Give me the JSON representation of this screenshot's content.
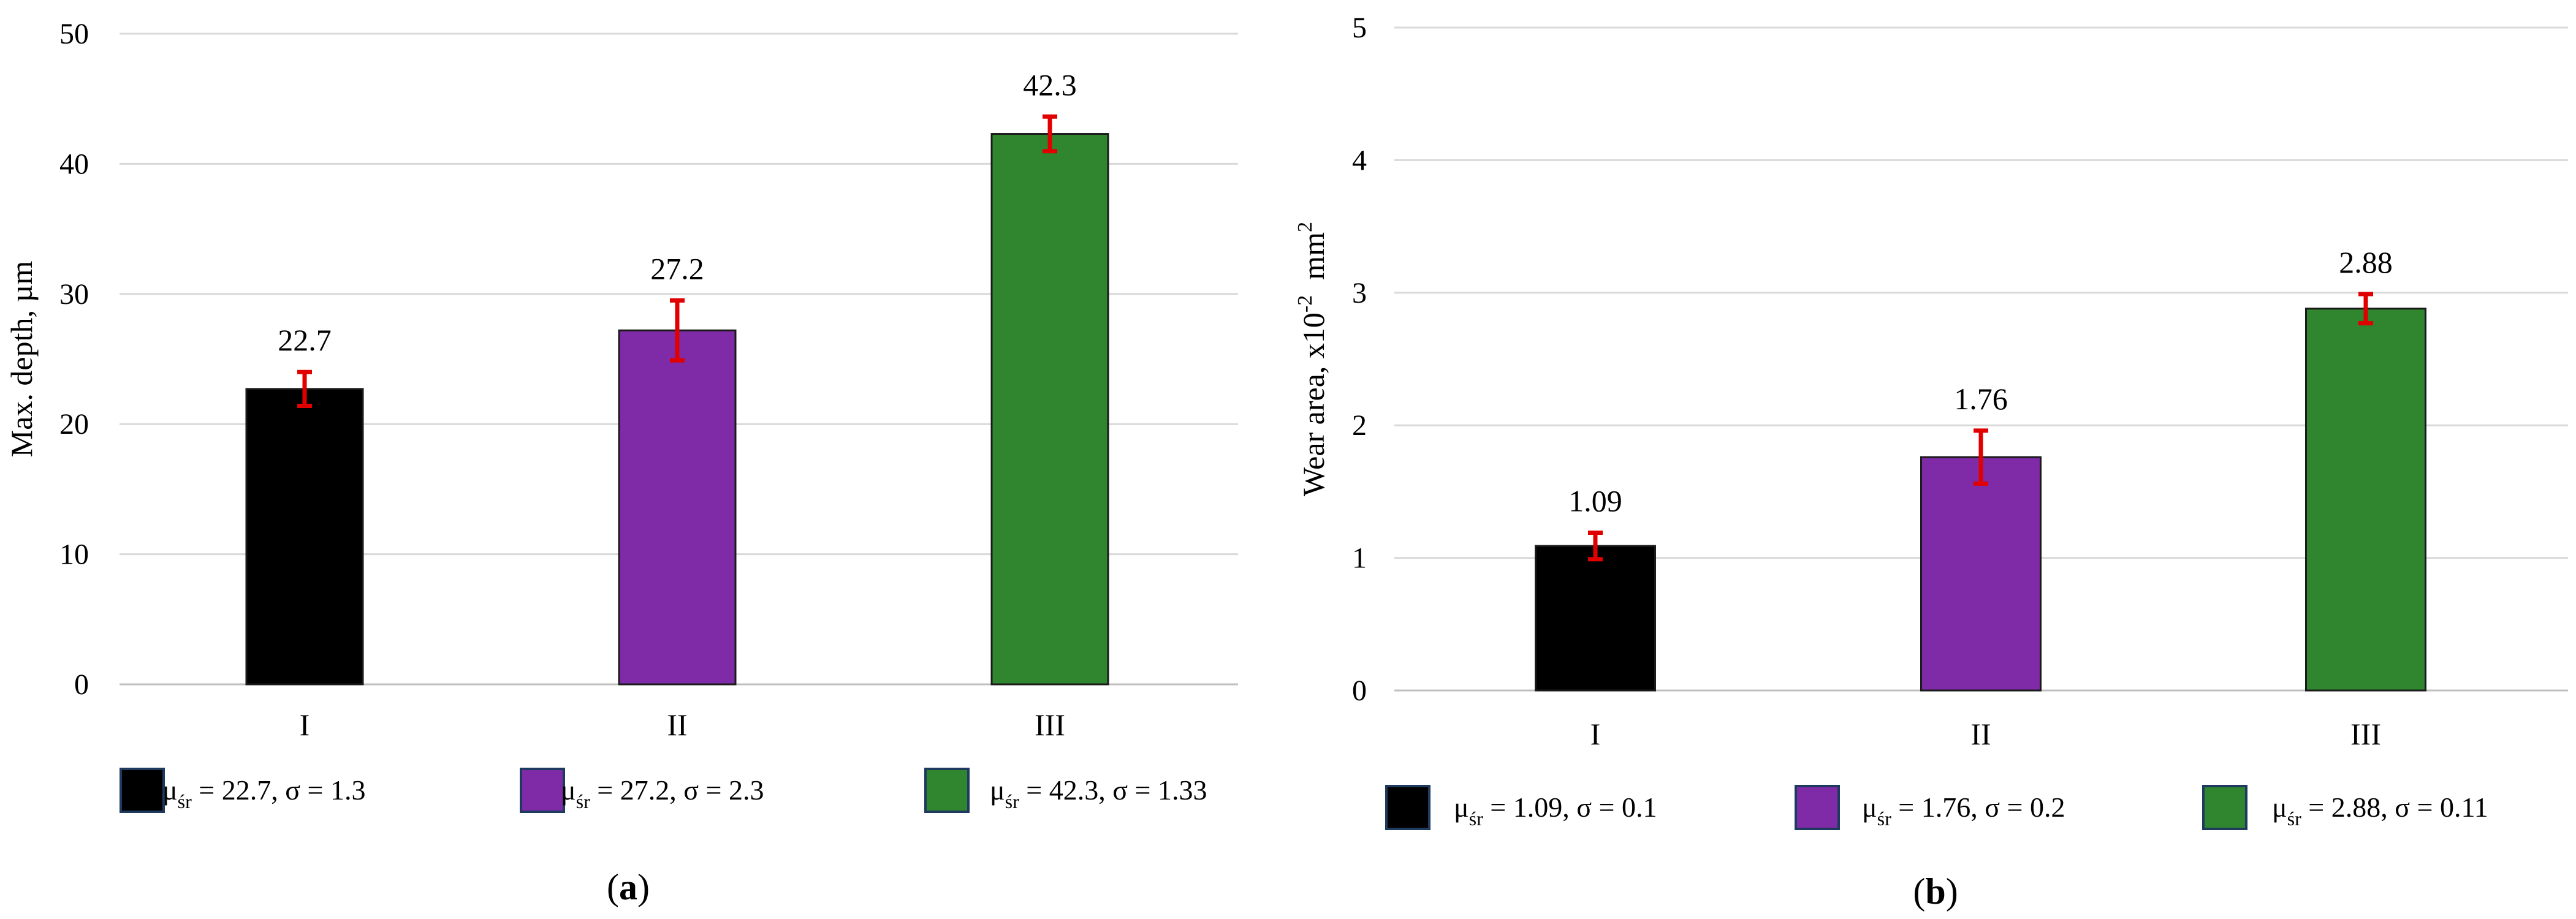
{
  "panels": [
    {
      "panel_label": "a",
      "legend": [
        {
          "mu_label": "μ",
          "mu_sub": "śr",
          "text": " = 22.7, σ = 1.3"
        },
        {
          "mu_label": "μ",
          "mu_sub": "śr",
          "text": " = 27.2, σ = 2.3"
        },
        {
          "mu_label": "μ",
          "mu_sub": "śr",
          "text": " = 42.3, σ = 1.33"
        }
      ]
    },
    {
      "panel_label": "b",
      "legend": [
        {
          "mu_label": "μ",
          "mu_sub": "śr",
          "text": " = 1.09, σ = 0.1"
        },
        {
          "mu_label": "μ",
          "mu_sub": "śr",
          "text": " = 1.76, σ = 0.2"
        },
        {
          "mu_label": "μ",
          "mu_sub": "śr",
          "text": " = 2.88, σ = 0.11"
        }
      ]
    }
  ],
  "chart_data": [
    {
      "type": "bar",
      "categories": [
        "I",
        "II",
        "III"
      ],
      "values": [
        22.7,
        27.2,
        42.3
      ],
      "value_labels": [
        "22.7",
        "27.2",
        "42.3"
      ],
      "error_bars": [
        1.3,
        2.3,
        1.33
      ],
      "ylabel": "Max. depth, µm",
      "ylim": [
        0,
        50
      ],
      "yticks": [
        0,
        10,
        20,
        30,
        40,
        50
      ],
      "grid": true,
      "legend_position": "bottom",
      "colors": [
        "#000000",
        "#7f2aa6",
        "#2f862f"
      ],
      "error_bar_color": "#e00000"
    },
    {
      "type": "bar",
      "categories": [
        "I",
        "II",
        "III"
      ],
      "values": [
        1.09,
        1.76,
        2.88
      ],
      "value_labels": [
        "1.09",
        "1.76",
        "2.88"
      ],
      "error_bars": [
        0.1,
        0.2,
        0.11
      ],
      "ylabel": "Wear area, x10",
      "ylabel_sup": "-2",
      "ylabel_unit": "mm",
      "ylabel_unit_sup": "2",
      "ylim": [
        0,
        5
      ],
      "yticks": [
        0,
        1,
        2,
        3,
        4,
        5
      ],
      "grid": true,
      "legend_position": "bottom",
      "colors": [
        "#000000",
        "#7f2aa6",
        "#2f862f"
      ],
      "error_bar_color": "#e00000"
    }
  ]
}
